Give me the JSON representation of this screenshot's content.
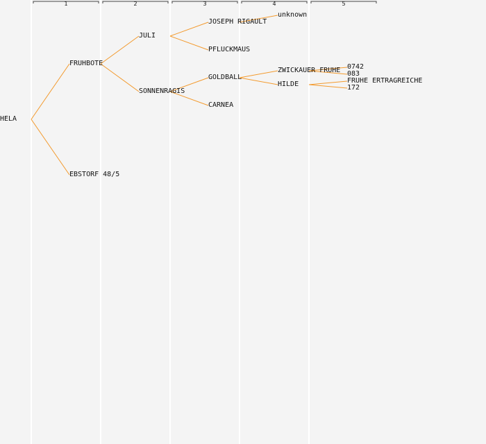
{
  "generations": [
    "1",
    "2",
    "3",
    "4",
    "5"
  ],
  "colors": {
    "background": "#f4f4f4",
    "column_separator": "#ffffff",
    "edge": "#f39a2d",
    "bracket": "#444444",
    "text": "#111111"
  },
  "tree": {
    "label": "HELA",
    "children": [
      {
        "label": "FRUHBOTE",
        "children": [
          {
            "label": "JULI",
            "children": [
              {
                "label": "JOSEPH RIGAULT",
                "children": [
                  {
                    "label": "unknown",
                    "children": []
                  }
                ]
              },
              {
                "label": "PFLUCKMAUS",
                "children": []
              }
            ]
          },
          {
            "label": "SONNENRAGIS",
            "children": [
              {
                "label": "GOLDBALL",
                "children": [
                  {
                    "label": "ZWICKAUER FRUHE",
                    "children": [
                      {
                        "label": "0742",
                        "children": []
                      },
                      {
                        "label": "083",
                        "children": []
                      }
                    ]
                  },
                  {
                    "label": "HILDE",
                    "children": [
                      {
                        "label": "FRUHE ERTRAGREICHE",
                        "children": []
                      },
                      {
                        "label": "172",
                        "children": []
                      }
                    ]
                  }
                ]
              },
              {
                "label": "CARNEA",
                "children": []
              }
            ]
          }
        ]
      },
      {
        "label": "EBSTORF 48/5",
        "children": []
      }
    ]
  }
}
